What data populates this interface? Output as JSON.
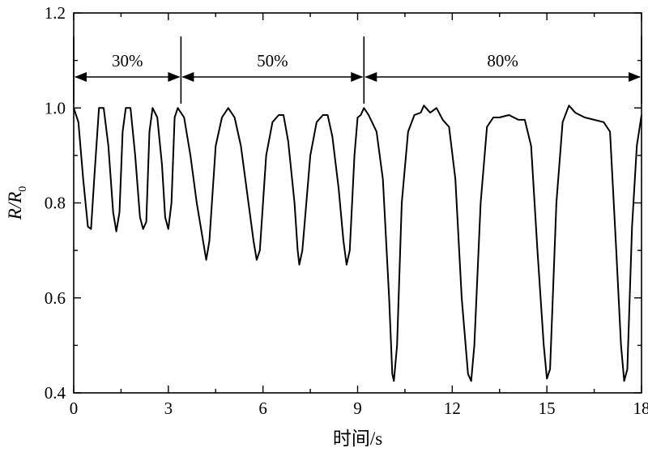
{
  "chart_data": {
    "type": "line",
    "xlabel": "时间/s",
    "ylabel": {
      "main": "R/R",
      "sub": "0"
    },
    "xlim": [
      0,
      18
    ],
    "ylim": [
      0.4,
      1.2
    ],
    "x_ticks": [
      0,
      3,
      6,
      9,
      12,
      15,
      18
    ],
    "y_ticks": [
      0.4,
      0.6,
      0.8,
      1.0,
      1.2
    ],
    "x_tick_labels": [
      "0",
      "3",
      "6",
      "9",
      "12",
      "15",
      "18"
    ],
    "y_tick_labels": [
      "0.4",
      "0.6",
      "0.8",
      "1.0",
      "1.2"
    ],
    "grid": false,
    "line_color": "#000000",
    "segments": [
      {
        "label": "30%",
        "x_start": 0.0,
        "x_end": 3.4
      },
      {
        "label": "50%",
        "x_start": 3.4,
        "x_end": 9.2
      },
      {
        "label": "80%",
        "x_start": 9.2,
        "x_end": 18.0
      }
    ],
    "series": [
      {
        "points": [
          [
            0.0,
            1.0
          ],
          [
            0.15,
            0.97
          ],
          [
            0.3,
            0.85
          ],
          [
            0.45,
            0.75
          ],
          [
            0.55,
            0.745
          ],
          [
            0.65,
            0.85
          ],
          [
            0.8,
            1.0
          ],
          [
            0.95,
            1.0
          ],
          [
            1.1,
            0.92
          ],
          [
            1.25,
            0.78
          ],
          [
            1.35,
            0.74
          ],
          [
            1.45,
            0.78
          ],
          [
            1.55,
            0.95
          ],
          [
            1.65,
            1.0
          ],
          [
            1.8,
            1.0
          ],
          [
            1.95,
            0.9
          ],
          [
            2.1,
            0.77
          ],
          [
            2.2,
            0.745
          ],
          [
            2.3,
            0.76
          ],
          [
            2.4,
            0.95
          ],
          [
            2.5,
            1.0
          ],
          [
            2.65,
            0.98
          ],
          [
            2.8,
            0.88
          ],
          [
            2.9,
            0.77
          ],
          [
            3.0,
            0.745
          ],
          [
            3.1,
            0.8
          ],
          [
            3.2,
            0.98
          ],
          [
            3.3,
            1.0
          ],
          [
            3.5,
            0.98
          ],
          [
            3.7,
            0.9
          ],
          [
            3.9,
            0.8
          ],
          [
            4.1,
            0.72
          ],
          [
            4.2,
            0.68
          ],
          [
            4.3,
            0.72
          ],
          [
            4.5,
            0.92
          ],
          [
            4.7,
            0.98
          ],
          [
            4.9,
            1.0
          ],
          [
            5.1,
            0.98
          ],
          [
            5.3,
            0.92
          ],
          [
            5.5,
            0.82
          ],
          [
            5.7,
            0.72
          ],
          [
            5.8,
            0.68
          ],
          [
            5.9,
            0.7
          ],
          [
            6.1,
            0.9
          ],
          [
            6.3,
            0.97
          ],
          [
            6.5,
            0.985
          ],
          [
            6.65,
            0.985
          ],
          [
            6.8,
            0.93
          ],
          [
            7.0,
            0.8
          ],
          [
            7.1,
            0.7
          ],
          [
            7.15,
            0.67
          ],
          [
            7.25,
            0.7
          ],
          [
            7.5,
            0.9
          ],
          [
            7.7,
            0.97
          ],
          [
            7.9,
            0.985
          ],
          [
            8.05,
            0.985
          ],
          [
            8.2,
            0.94
          ],
          [
            8.4,
            0.83
          ],
          [
            8.55,
            0.72
          ],
          [
            8.65,
            0.67
          ],
          [
            8.75,
            0.7
          ],
          [
            8.9,
            0.9
          ],
          [
            9.0,
            0.98
          ],
          [
            9.1,
            0.985
          ],
          [
            9.2,
            1.0
          ],
          [
            9.35,
            0.985
          ],
          [
            9.6,
            0.95
          ],
          [
            9.8,
            0.85
          ],
          [
            10.0,
            0.6
          ],
          [
            10.1,
            0.44
          ],
          [
            10.15,
            0.425
          ],
          [
            10.25,
            0.5
          ],
          [
            10.4,
            0.8
          ],
          [
            10.6,
            0.95
          ],
          [
            10.8,
            0.985
          ],
          [
            11.0,
            0.99
          ],
          [
            11.1,
            1.005
          ],
          [
            11.3,
            0.99
          ],
          [
            11.5,
            1.0
          ],
          [
            11.7,
            0.975
          ],
          [
            11.9,
            0.96
          ],
          [
            12.1,
            0.85
          ],
          [
            12.3,
            0.6
          ],
          [
            12.5,
            0.44
          ],
          [
            12.6,
            0.425
          ],
          [
            12.7,
            0.5
          ],
          [
            12.9,
            0.8
          ],
          [
            13.1,
            0.96
          ],
          [
            13.3,
            0.98
          ],
          [
            13.5,
            0.98
          ],
          [
            13.8,
            0.985
          ],
          [
            14.1,
            0.975
          ],
          [
            14.3,
            0.975
          ],
          [
            14.5,
            0.92
          ],
          [
            14.7,
            0.7
          ],
          [
            14.9,
            0.5
          ],
          [
            15.0,
            0.43
          ],
          [
            15.1,
            0.45
          ],
          [
            15.3,
            0.8
          ],
          [
            15.5,
            0.97
          ],
          [
            15.7,
            1.005
          ],
          [
            15.9,
            0.99
          ],
          [
            16.2,
            0.98
          ],
          [
            16.5,
            0.975
          ],
          [
            16.8,
            0.97
          ],
          [
            17.0,
            0.95
          ],
          [
            17.2,
            0.7
          ],
          [
            17.35,
            0.5
          ],
          [
            17.45,
            0.425
          ],
          [
            17.55,
            0.45
          ],
          [
            17.7,
            0.75
          ],
          [
            17.85,
            0.92
          ],
          [
            18.0,
            0.985
          ]
        ]
      }
    ]
  }
}
